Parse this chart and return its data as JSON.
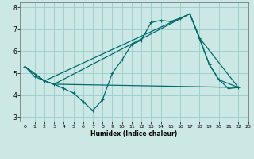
{
  "xlabel": "Humidex (Indice chaleur)",
  "bg_color": "#cce8e4",
  "grid_color": "#99cccc",
  "line_color": "#006b6b",
  "xlim": [
    -0.5,
    23
  ],
  "ylim": [
    2.8,
    8.2
  ],
  "yticks": [
    3,
    4,
    5,
    6,
    7,
    8
  ],
  "xticks": [
    0,
    1,
    2,
    3,
    4,
    5,
    6,
    7,
    8,
    9,
    10,
    11,
    12,
    13,
    14,
    15,
    16,
    17,
    18,
    19,
    20,
    21,
    22,
    23
  ],
  "series1_x": [
    0,
    1,
    2,
    3,
    4,
    5,
    6,
    7,
    8,
    9,
    10,
    11,
    12,
    13,
    14,
    15,
    16,
    17,
    18,
    19,
    20,
    21,
    22
  ],
  "series1_y": [
    5.3,
    4.85,
    4.65,
    4.5,
    4.3,
    4.1,
    3.7,
    3.3,
    3.8,
    5.0,
    5.6,
    6.3,
    6.5,
    7.3,
    7.4,
    7.35,
    7.5,
    7.7,
    6.6,
    5.4,
    4.7,
    4.3,
    4.35
  ],
  "series2_x": [
    0,
    2,
    17,
    19,
    20,
    22
  ],
  "series2_y": [
    5.3,
    4.65,
    7.7,
    5.4,
    4.7,
    4.35
  ],
  "series3_x": [
    0,
    2,
    3,
    17,
    18,
    22
  ],
  "series3_y": [
    5.3,
    4.65,
    4.5,
    7.7,
    6.6,
    4.35
  ],
  "series4_x": [
    0,
    2,
    3,
    22
  ],
  "series4_y": [
    5.3,
    4.65,
    4.5,
    4.35
  ]
}
